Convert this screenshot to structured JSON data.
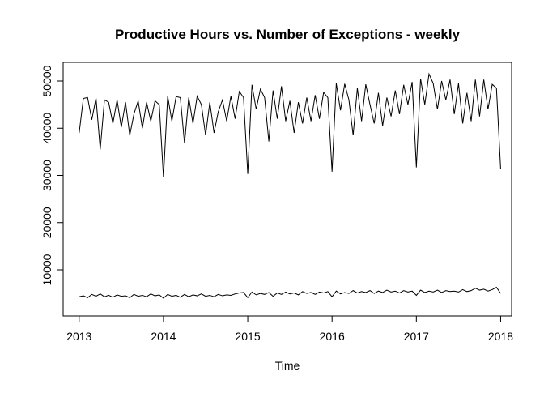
{
  "chart_data": {
    "type": "line",
    "title": "Productive Hours vs. Number of Exceptions - weekly",
    "x_label": "Time",
    "xlim": [
      2012.81,
      2018.13
    ],
    "ylim": [
      215,
      53950
    ],
    "xticks": [
      2013,
      2014,
      2015,
      2016,
      2017,
      2018
    ],
    "yticks": [
      10000,
      20000,
      30000,
      40000,
      50000
    ],
    "x": [
      2013,
      2013.05,
      2013.1,
      2013.15,
      2013.2,
      2013.25,
      2013.3,
      2013.35,
      2013.4,
      2013.45,
      2013.5,
      2013.55,
      2013.6,
      2013.65,
      2013.7,
      2013.75,
      2013.8,
      2013.85,
      2013.9,
      2013.95,
      2014,
      2014.05,
      2014.1,
      2014.15,
      2014.2,
      2014.25,
      2014.3,
      2014.35,
      2014.4,
      2014.45,
      2014.5,
      2014.55,
      2014.6,
      2014.65,
      2014.7,
      2014.75,
      2014.8,
      2014.85,
      2014.9,
      2014.95,
      2015,
      2015.05,
      2015.1,
      2015.15,
      2015.2,
      2015.25,
      2015.3,
      2015.35,
      2015.4,
      2015.45,
      2015.5,
      2015.55,
      2015.6,
      2015.65,
      2015.7,
      2015.75,
      2015.8,
      2015.85,
      2015.9,
      2015.95,
      2016,
      2016.05,
      2016.1,
      2016.15,
      2016.2,
      2016.25,
      2016.3,
      2016.35,
      2016.4,
      2016.45,
      2016.5,
      2016.55,
      2016.6,
      2016.65,
      2016.7,
      2016.75,
      2016.8,
      2016.85,
      2016.9,
      2016.95,
      2017,
      2017.05,
      2017.1,
      2017.15,
      2017.2,
      2017.25,
      2017.3,
      2017.35,
      2017.4,
      2017.45,
      2017.5,
      2017.55,
      2017.6,
      2017.65,
      2017.7,
      2017.75,
      2017.8,
      2017.85,
      2017.9,
      2017.95,
      2018
    ],
    "series": [
      {
        "color": "#000000",
        "values": [
          39000,
          46300,
          46500,
          41800,
          46400,
          35500,
          46000,
          45500,
          41000,
          46000,
          40200,
          45500,
          38500,
          43000,
          45800,
          40000,
          45500,
          41500,
          45800,
          45000,
          29600,
          46800,
          41500,
          46700,
          46500,
          36800,
          46500,
          41000,
          46800,
          45000,
          38500,
          45500,
          39000,
          43500,
          46000,
          41500,
          46800,
          42000,
          47800,
          46500,
          30300,
          49200,
          44000,
          48300,
          46500,
          37200,
          48000,
          42000,
          48900,
          41500,
          45800,
          39000,
          45500,
          41000,
          46500,
          41500,
          47000,
          42000,
          47600,
          46500,
          30800,
          49500,
          43800,
          49400,
          46000,
          38500,
          48500,
          41500,
          49300,
          45000,
          41000,
          47500,
          40500,
          46500,
          42500,
          48000,
          43000,
          49200,
          45000,
          49800,
          31700,
          50500,
          45000,
          51500,
          49500,
          44000,
          50000,
          46000,
          50300,
          43000,
          49500,
          41000,
          47500,
          41500,
          50300,
          42500,
          50300,
          44000,
          49300,
          48500,
          31300
        ]
      },
      {
        "color": "#000000",
        "values": [
          4300,
          4500,
          4100,
          4800,
          4400,
          4900,
          4300,
          4600,
          4200,
          4700,
          4400,
          4500,
          4100,
          4800,
          4400,
          4600,
          4300,
          4900,
          4500,
          4700,
          4000,
          4800,
          4400,
          4600,
          4200,
          4800,
          4300,
          4700,
          4500,
          4900,
          4400,
          4600,
          4300,
          4800,
          4500,
          4700,
          4600,
          4900,
          5100,
          5200,
          4100,
          5300,
          4700,
          5000,
          4800,
          5200,
          4400,
          5100,
          4800,
          5300,
          4900,
          5100,
          4700,
          5400,
          5000,
          5200,
          4800,
          5300,
          5100,
          5400,
          4300,
          5500,
          4900,
          5200,
          5000,
          5600,
          5100,
          5400,
          5200,
          5600,
          5000,
          5500,
          5200,
          5700,
          5300,
          5500,
          5100,
          5600,
          5300,
          5500,
          4600,
          5700,
          5200,
          5500,
          5300,
          5700,
          5200,
          5600,
          5400,
          5500,
          5300,
          5800,
          5400,
          5600,
          6100,
          5700,
          5900,
          5500,
          5800,
          6300,
          5000
        ]
      }
    ]
  }
}
